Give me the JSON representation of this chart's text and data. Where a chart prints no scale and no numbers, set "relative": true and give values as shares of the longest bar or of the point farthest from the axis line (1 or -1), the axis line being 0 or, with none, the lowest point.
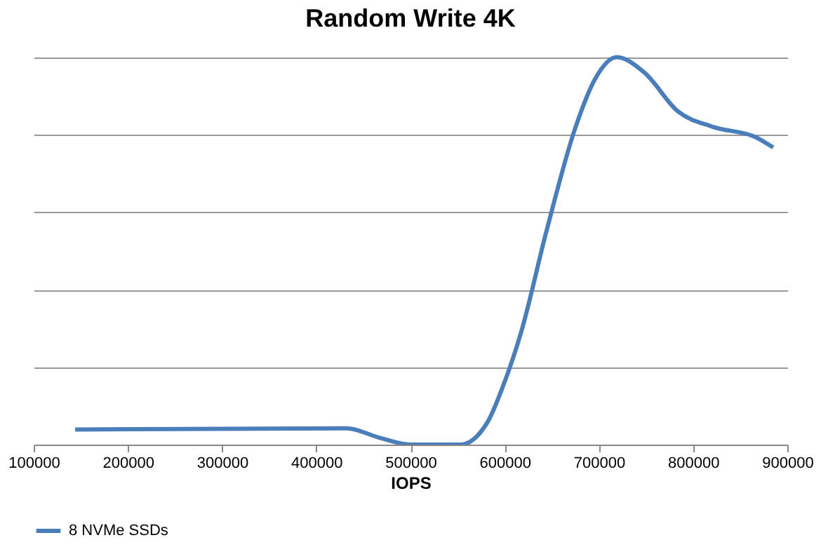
{
  "chart_data": {
    "type": "line",
    "title": "Random Write 4K",
    "xlabel": "IOPS",
    "relative": true,
    "xlim": [
      100000,
      900000
    ],
    "xticks": [
      100000,
      200000,
      300000,
      400000,
      500000,
      600000,
      700000,
      800000,
      900000
    ],
    "grid": "y",
    "legend": "bottom",
    "line_style": "solid",
    "marker": "none",
    "series": [
      {
        "name": "8 NVMe SSDs",
        "color": "#4a7ebb",
        "x": [
          144000,
          204000,
          432000,
          468000,
          500000,
          553000,
          582000,
          597000,
          618000,
          644000,
          675000,
          696000,
          719000,
          748000,
          784000,
          820000,
          867000,
          885000
        ],
        "values": [
          0.039,
          0.04,
          0.042,
          0.017,
          0,
          0,
          0.059,
          0.143,
          0.295,
          0.548,
          0.818,
          0.944,
          1,
          0.961,
          0.86,
          0.821,
          0.793,
          0.767
        ]
      }
    ]
  }
}
